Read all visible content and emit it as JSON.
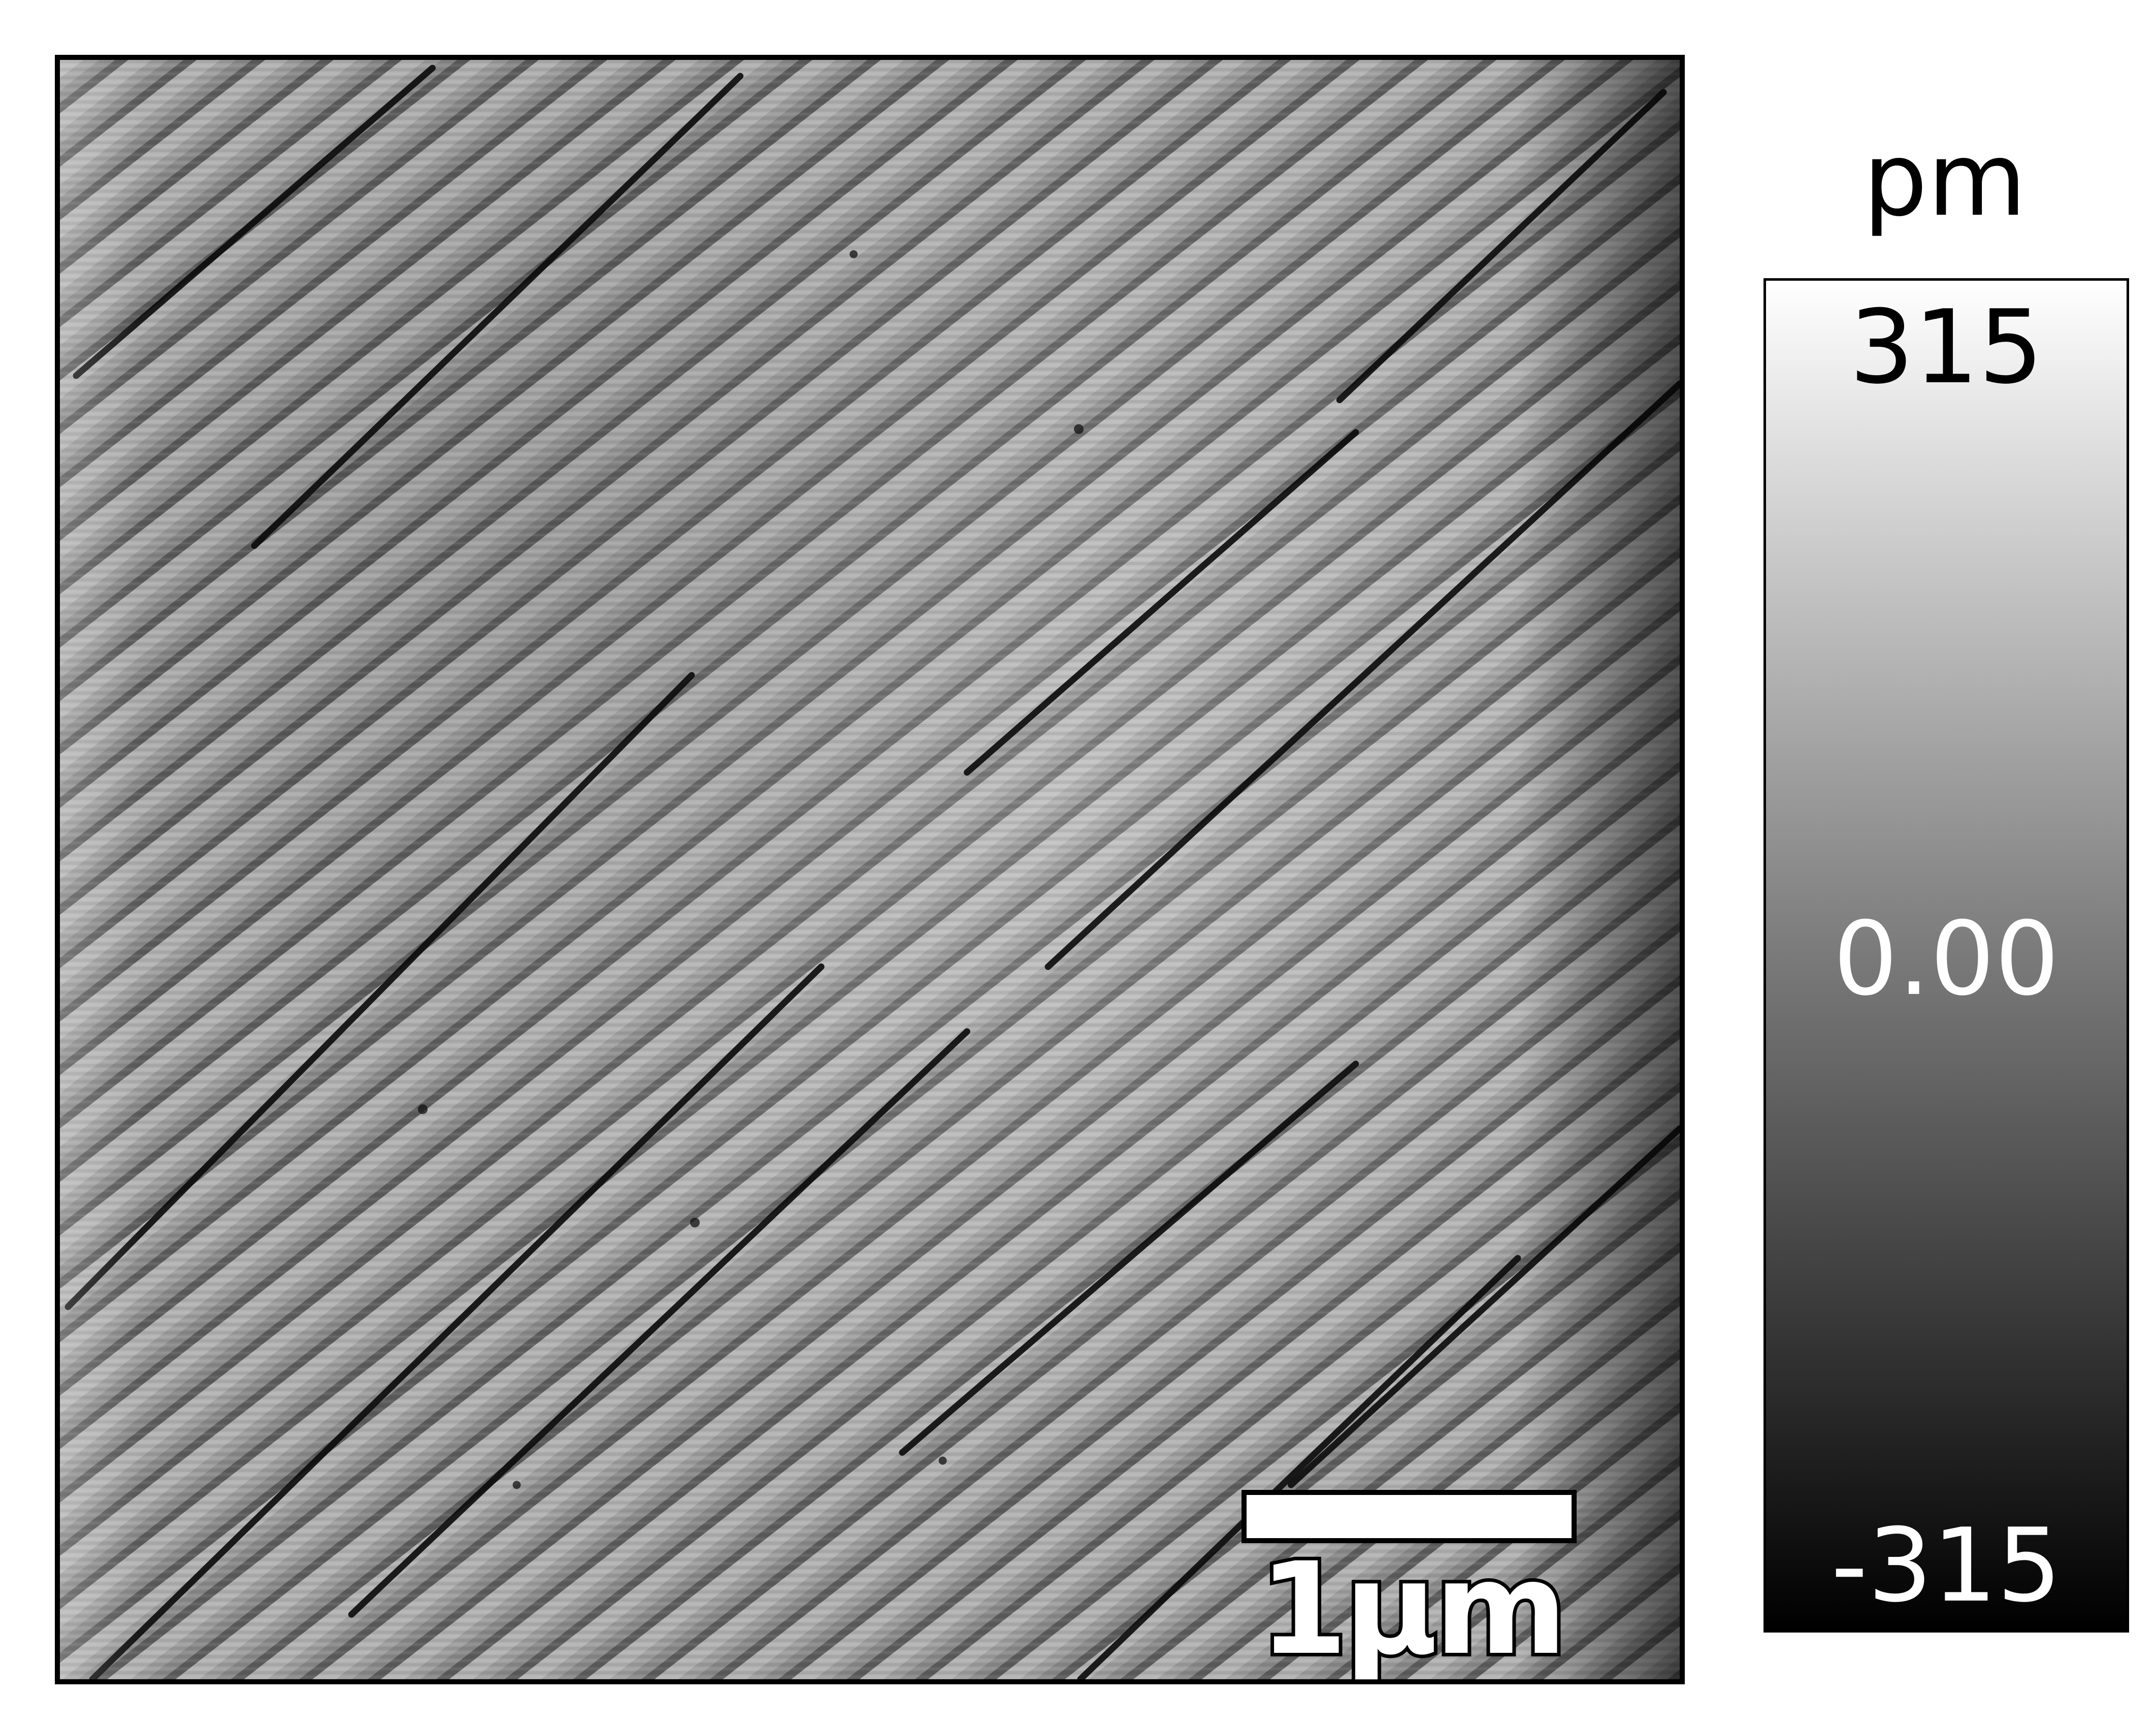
{
  "image": {
    "description_kind": "AFM topography image of stepped surface",
    "scale_bar": {
      "label": "1μm"
    }
  },
  "colorbar": {
    "unit": "pm",
    "max_label": "315",
    "mid_label": "0.00",
    "min_label": "-315",
    "colors": {
      "top": "#ffffff",
      "middle": "#7a7a7a",
      "bottom": "#000000"
    }
  }
}
